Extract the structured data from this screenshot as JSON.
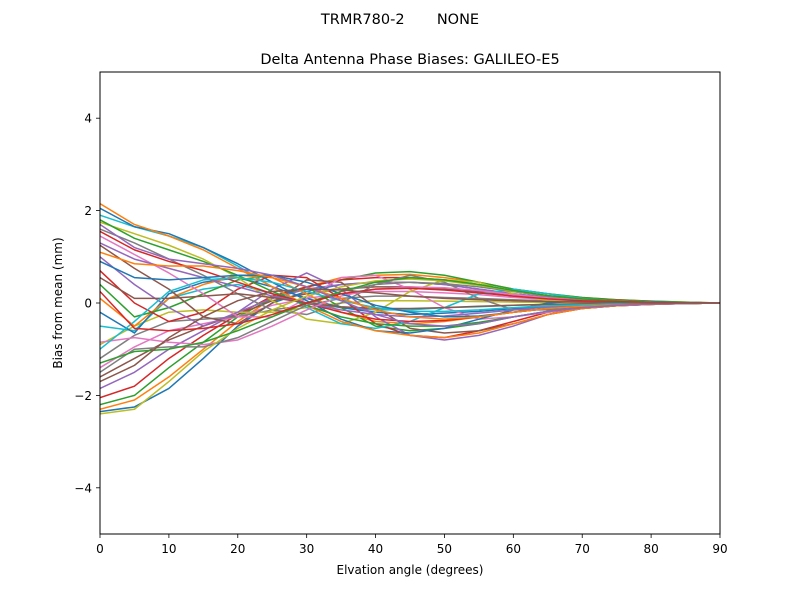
{
  "suptitle": "TRMR780-2       NONE",
  "chart_data": {
    "type": "line",
    "title": "Delta Antenna Phase Biases: GALILEO-E5",
    "xlabel": "Elvation angle (degrees)",
    "ylabel": "Bias from mean (mm)",
    "xlim": [
      0,
      90
    ],
    "ylim": [
      -5,
      5
    ],
    "xticks": [
      0,
      10,
      20,
      30,
      40,
      50,
      60,
      70,
      80,
      90
    ],
    "yticks": [
      -4,
      -2,
      0,
      2,
      4
    ],
    "ytick_labels": [
      "−4",
      "−2",
      "0",
      "2",
      "4"
    ],
    "grid": false,
    "x": [
      0,
      5,
      10,
      15,
      20,
      25,
      30,
      35,
      40,
      45,
      50,
      55,
      60,
      65,
      70,
      75,
      80,
      85,
      90
    ],
    "colors": [
      "#1f77b4",
      "#ff7f0e",
      "#2ca02c",
      "#d62728",
      "#9467bd",
      "#8c564b",
      "#e377c2",
      "#7f7f7f",
      "#bcbd22",
      "#17becf"
    ],
    "series": [
      {
        "values": [
          -2.35,
          -2.25,
          -1.85,
          -1.2,
          -0.5,
          0.0,
          0.25,
          0.4,
          0.45,
          0.45,
          0.4,
          0.3,
          0.2,
          0.12,
          0.08,
          0.05,
          0.03,
          0.01,
          0.0
        ]
      },
      {
        "values": [
          -2.3,
          -2.1,
          -1.6,
          -1.0,
          -0.4,
          0.1,
          0.35,
          0.55,
          0.6,
          0.62,
          0.55,
          0.45,
          0.3,
          0.2,
          0.12,
          0.07,
          0.04,
          0.02,
          0.0
        ]
      },
      {
        "values": [
          -2.2,
          -2.0,
          -1.4,
          -0.85,
          -0.3,
          0.1,
          0.35,
          0.5,
          0.65,
          0.68,
          0.6,
          0.45,
          0.3,
          0.2,
          0.12,
          0.07,
          0.04,
          0.02,
          0.0
        ]
      },
      {
        "values": [
          -2.05,
          -1.8,
          -1.2,
          -0.7,
          -0.25,
          0.15,
          0.35,
          0.5,
          0.55,
          0.55,
          0.5,
          0.4,
          0.25,
          0.15,
          0.1,
          0.06,
          0.03,
          0.01,
          0.0
        ]
      },
      {
        "values": [
          -1.85,
          -1.5,
          -1.0,
          -0.6,
          -0.2,
          0.1,
          0.3,
          0.4,
          0.45,
          0.45,
          0.4,
          0.3,
          0.2,
          0.12,
          0.08,
          0.05,
          0.03,
          0.01,
          0.0
        ]
      },
      {
        "values": [
          -1.6,
          -1.2,
          -0.8,
          -0.5,
          -0.25,
          0.05,
          0.2,
          0.3,
          0.35,
          0.35,
          0.3,
          0.25,
          0.15,
          0.1,
          0.06,
          0.04,
          0.02,
          0.01,
          0.0
        ]
      },
      {
        "values": [
          -1.4,
          -0.95,
          -0.6,
          -0.45,
          -0.3,
          -0.05,
          0.1,
          0.2,
          0.25,
          0.25,
          0.22,
          0.18,
          0.12,
          0.08,
          0.05,
          0.03,
          0.02,
          0.01,
          0.0
        ]
      },
      {
        "values": [
          -1.2,
          -0.7,
          -0.4,
          -0.35,
          -0.3,
          -0.15,
          -0.05,
          0.1,
          0.15,
          0.15,
          0.12,
          0.1,
          0.07,
          0.05,
          0.03,
          0.02,
          0.01,
          0.0,
          0.0
        ]
      },
      {
        "values": [
          -0.9,
          -0.5,
          -0.2,
          -0.15,
          -0.2,
          -0.2,
          -0.1,
          0.0,
          0.05,
          0.05,
          0.04,
          0.03,
          0.02,
          0.01,
          0.01,
          0.0,
          0.0,
          0.0,
          0.0
        ]
      },
      {
        "values": [
          -0.5,
          -0.6,
          0.1,
          0.3,
          0.4,
          0.2,
          0.0,
          -0.1,
          -0.15,
          -0.15,
          -0.1,
          -0.08,
          -0.05,
          -0.03,
          -0.02,
          -0.01,
          0.0,
          0.0,
          0.0
        ]
      },
      {
        "values": [
          -0.2,
          -0.65,
          0.2,
          0.45,
          0.55,
          0.35,
          0.1,
          -0.1,
          -0.2,
          -0.25,
          -0.22,
          -0.18,
          -0.12,
          -0.08,
          -0.05,
          -0.03,
          -0.02,
          -0.01,
          0.0
        ]
      },
      {
        "values": [
          0.1,
          -0.5,
          0.1,
          0.4,
          0.6,
          0.55,
          0.2,
          -0.2,
          -0.4,
          -0.45,
          -0.4,
          -0.3,
          -0.2,
          -0.12,
          -0.07,
          -0.04,
          -0.02,
          -0.01,
          0.0
        ]
      },
      {
        "values": [
          0.4,
          -0.3,
          -0.1,
          0.2,
          0.5,
          0.6,
          0.35,
          -0.1,
          -0.5,
          -0.6,
          -0.55,
          -0.45,
          -0.3,
          -0.18,
          -0.1,
          -0.05,
          -0.03,
          -0.01,
          0.0
        ]
      },
      {
        "values": [
          0.7,
          0.0,
          -0.4,
          -0.2,
          0.3,
          0.6,
          0.55,
          0.1,
          -0.45,
          -0.7,
          -0.75,
          -0.6,
          -0.4,
          -0.2,
          -0.12,
          -0.06,
          -0.03,
          -0.01,
          0.0
        ]
      },
      {
        "values": [
          1.0,
          0.4,
          -0.1,
          -0.5,
          -0.2,
          0.3,
          0.65,
          0.3,
          -0.3,
          -0.7,
          -0.8,
          -0.7,
          -0.5,
          -0.25,
          -0.12,
          -0.06,
          -0.03,
          -0.01,
          0.0
        ]
      },
      {
        "values": [
          1.25,
          0.75,
          0.3,
          -0.3,
          -0.45,
          0.0,
          0.5,
          0.45,
          -0.1,
          -0.55,
          -0.65,
          -0.6,
          -0.45,
          -0.25,
          -0.12,
          -0.06,
          -0.03,
          -0.01,
          0.0
        ]
      },
      {
        "values": [
          1.45,
          1.05,
          0.65,
          0.2,
          -0.3,
          -0.3,
          0.1,
          0.55,
          0.6,
          0.3,
          -0.1,
          -0.35,
          -0.3,
          -0.2,
          -0.1,
          -0.05,
          -0.02,
          -0.01,
          0.0
        ]
      },
      {
        "values": [
          1.6,
          1.3,
          0.95,
          0.6,
          0.2,
          -0.15,
          -0.25,
          0.0,
          0.4,
          0.6,
          0.45,
          0.1,
          -0.15,
          -0.15,
          -0.08,
          -0.04,
          -0.02,
          -0.01,
          0.0
        ]
      },
      {
        "values": [
          1.75,
          1.5,
          1.25,
          0.95,
          0.55,
          0.05,
          -0.35,
          -0.45,
          -0.2,
          0.25,
          0.5,
          0.45,
          0.2,
          0.05,
          0.02,
          0.01,
          0.0,
          0.0,
          0.0
        ]
      },
      {
        "values": [
          1.9,
          1.65,
          1.45,
          1.2,
          0.8,
          0.35,
          -0.1,
          -0.45,
          -0.55,
          -0.4,
          -0.1,
          0.2,
          0.3,
          0.2,
          0.1,
          0.05,
          0.02,
          0.01,
          0.0
        ]
      },
      {
        "values": [
          2.05,
          1.65,
          1.5,
          1.2,
          0.85,
          0.45,
          0.05,
          -0.35,
          -0.6,
          -0.65,
          -0.55,
          -0.35,
          -0.15,
          0.0,
          0.05,
          0.05,
          0.03,
          0.01,
          0.0
        ]
      },
      {
        "values": [
          2.15,
          1.7,
          1.45,
          1.15,
          0.75,
          0.35,
          -0.05,
          -0.4,
          -0.6,
          -0.7,
          -0.75,
          -0.65,
          -0.45,
          -0.25,
          -0.12,
          -0.06,
          -0.03,
          -0.01,
          0.0
        ]
      },
      {
        "values": [
          1.8,
          1.4,
          1.15,
          0.9,
          0.6,
          0.25,
          -0.05,
          -0.3,
          -0.45,
          -0.5,
          -0.5,
          -0.42,
          -0.3,
          -0.18,
          -0.1,
          -0.05,
          -0.02,
          -0.01,
          0.0
        ]
      },
      {
        "values": [
          1.55,
          1.15,
          0.9,
          0.7,
          0.45,
          0.2,
          0.0,
          -0.2,
          -0.35,
          -0.4,
          -0.38,
          -0.3,
          -0.2,
          -0.12,
          -0.07,
          -0.04,
          -0.02,
          -0.01,
          0.0
        ]
      },
      {
        "values": [
          1.3,
          0.95,
          0.75,
          0.55,
          0.35,
          0.15,
          0.0,
          -0.15,
          -0.25,
          -0.3,
          -0.28,
          -0.22,
          -0.15,
          -0.09,
          -0.05,
          -0.03,
          -0.01,
          0.0,
          0.0
        ]
      },
      {
        "values": [
          0.55,
          0.1,
          0.1,
          0.15,
          0.2,
          0.12,
          0.0,
          -0.08,
          -0.12,
          -0.12,
          -0.1,
          -0.07,
          -0.05,
          -0.03,
          -0.02,
          -0.01,
          0.0,
          0.0,
          0.0
        ]
      },
      {
        "values": [
          -0.85,
          -0.75,
          -0.85,
          -0.9,
          -0.8,
          -0.5,
          -0.15,
          0.15,
          0.3,
          0.35,
          0.33,
          0.27,
          0.18,
          0.11,
          0.06,
          0.03,
          0.02,
          0.01,
          0.0
        ]
      },
      {
        "values": [
          -1.5,
          -1.0,
          -0.95,
          -0.95,
          -0.75,
          -0.4,
          -0.05,
          0.25,
          0.4,
          0.45,
          0.42,
          0.35,
          0.25,
          0.15,
          0.09,
          0.05,
          0.02,
          0.01,
          0.0
        ]
      },
      {
        "values": [
          -2.4,
          -2.3,
          -1.7,
          -1.05,
          -0.55,
          -0.15,
          0.15,
          0.35,
          0.48,
          0.52,
          0.48,
          0.38,
          0.26,
          0.16,
          0.09,
          0.05,
          0.02,
          0.01,
          0.0
        ]
      },
      {
        "values": [
          -1.0,
          -0.4,
          0.25,
          0.5,
          0.55,
          0.45,
          0.25,
          0.05,
          -0.1,
          -0.18,
          -0.18,
          -0.15,
          -0.1,
          -0.06,
          -0.04,
          -0.02,
          -0.01,
          0.0,
          0.0
        ]
      },
      {
        "values": [
          0.9,
          0.55,
          0.5,
          0.55,
          0.6,
          0.6,
          0.45,
          0.2,
          -0.05,
          -0.2,
          -0.3,
          -0.28,
          -0.2,
          -0.12,
          -0.07,
          -0.04,
          -0.02,
          -0.01,
          0.0
        ]
      },
      {
        "values": [
          1.1,
          0.85,
          0.8,
          0.8,
          0.7,
          0.55,
          0.35,
          0.1,
          -0.15,
          -0.3,
          -0.35,
          -0.3,
          -0.2,
          -0.12,
          -0.07,
          -0.04,
          -0.02,
          -0.01,
          0.0
        ]
      },
      {
        "values": [
          -1.3,
          -1.05,
          -1.0,
          -0.85,
          -0.6,
          -0.3,
          0.0,
          0.25,
          0.45,
          0.55,
          0.5,
          0.4,
          0.27,
          0.16,
          0.09,
          0.05,
          0.02,
          0.01,
          0.0
        ]
      },
      {
        "values": [
          0.25,
          -0.55,
          -0.6,
          -0.55,
          -0.45,
          -0.25,
          0.0,
          0.2,
          0.3,
          0.32,
          0.28,
          0.22,
          0.15,
          0.09,
          0.05,
          0.03,
          0.01,
          0.0,
          0.0
        ]
      },
      {
        "values": [
          1.7,
          1.2,
          0.95,
          0.85,
          0.75,
          0.6,
          0.35,
          0.05,
          -0.25,
          -0.45,
          -0.5,
          -0.45,
          -0.3,
          -0.18,
          -0.1,
          -0.05,
          -0.02,
          -0.01,
          0.0
        ]
      },
      {
        "values": [
          -1.7,
          -1.35,
          -0.75,
          -0.3,
          0.05,
          0.25,
          0.3,
          0.28,
          0.22,
          0.15,
          0.1,
          0.07,
          0.05,
          0.03,
          0.02,
          0.01,
          0.0,
          0.0,
          0.0
        ]
      }
    ]
  }
}
